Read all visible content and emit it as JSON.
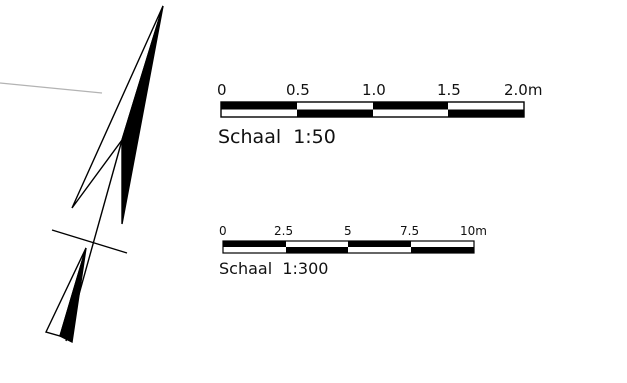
{
  "scale_bars": [
    {
      "caption": "Schaal  1:50",
      "ticks": [
        "0",
        "0.5",
        "1.0",
        "1.5",
        "2.0m"
      ]
    },
    {
      "caption": "Schaal  1:300",
      "ticks": [
        "0",
        "2.5",
        "5",
        "7.5",
        "10m"
      ]
    }
  ],
  "colors": {
    "ink": "#000000",
    "paper": "#ffffff",
    "guide_line": "#b3b3b3"
  }
}
